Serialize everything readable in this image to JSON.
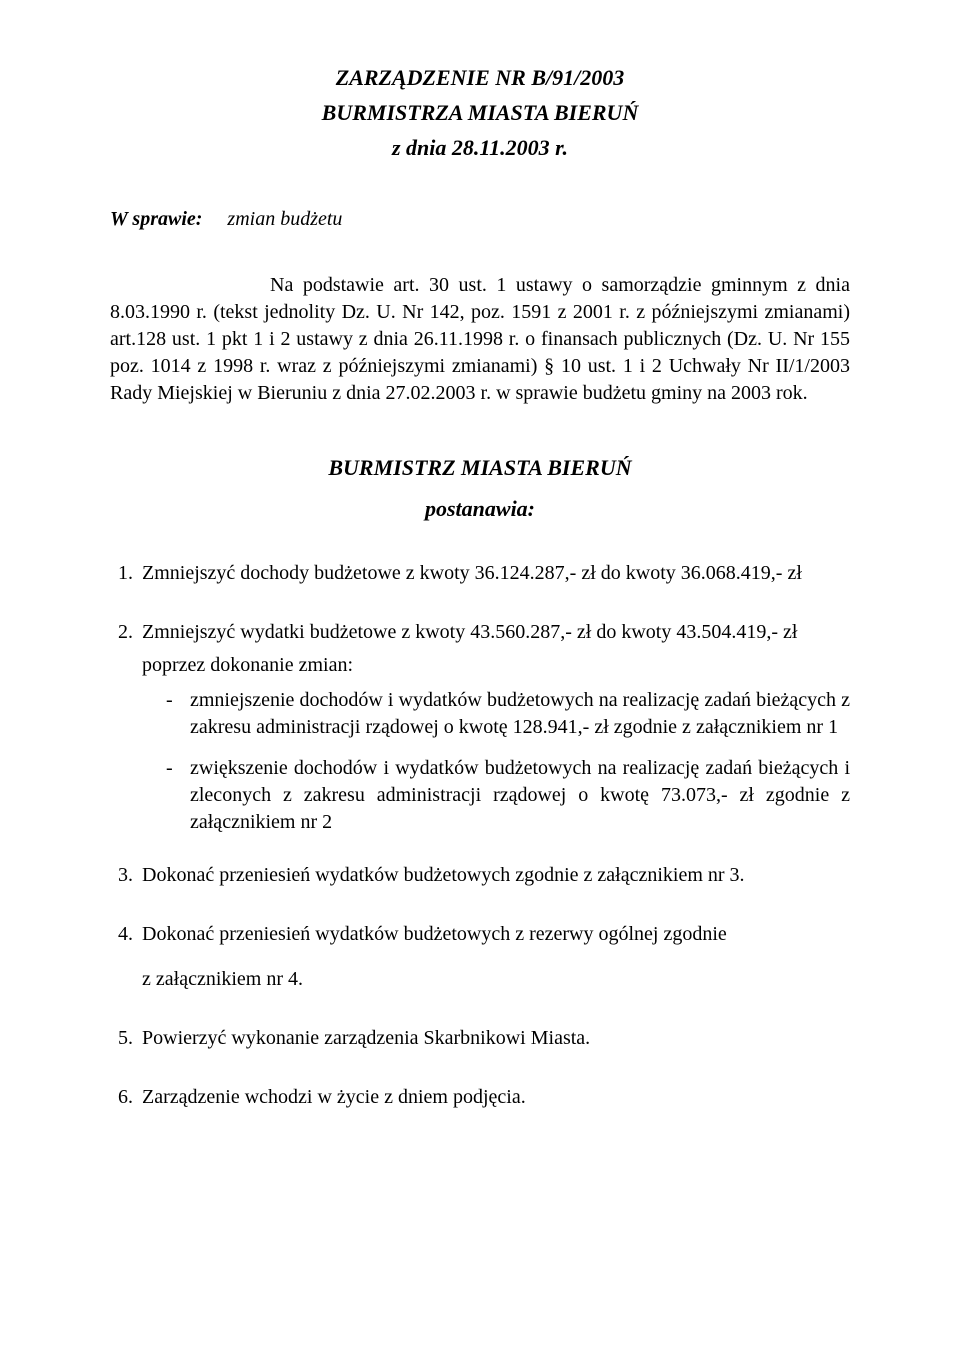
{
  "title": {
    "line1": "ZARZĄDZENIE NR B/91/2003",
    "line2": "BURMISTRZA  MIASTA  BIERUŃ",
    "line3": "z dnia 28.11.2003 r."
  },
  "subject": {
    "label": "W sprawie:",
    "text": "zmian budżetu"
  },
  "legal_basis": "Na podstawie art. 30 ust. 1 ustawy o samorządzie gminnym z dnia 8.03.1990 r. (tekst jednolity Dz. U. Nr 142, poz. 1591 z 2001 r. z późniejszymi zmianami) art.128 ust. 1 pkt 1 i 2 ustawy z dnia 26.11.1998 r. o finansach publicznych (Dz. U. Nr 155 poz. 1014 z 1998 r. wraz z późniejszymi zmianami) § 10 ust. 1 i 2 Uchwały Nr II/1/2003 Rady Miejskiej w Bieruniu z dnia 27.02.2003 r. w sprawie budżetu gminy na 2003 rok.",
  "decrees_header": {
    "line1": "BURMISTRZ  MIASTA  BIERUŃ",
    "line2": "postanawia:"
  },
  "items": {
    "i1": "Zmniejszyć dochody budżetowe z kwoty 36.124.287,- zł  do kwoty 36.068.419,- zł",
    "i2": "Zmniejszyć wydatki budżetowe z kwoty  43.560.287,- zł  do kwoty 43.504.419,- zł",
    "i2_intro": "poprzez dokonanie zmian:",
    "i2_sub1": "zmniejszenie dochodów i wydatków budżetowych na realizację zadań bieżących z zakresu administracji rządowej o kwotę 128.941,- zł zgodnie z załącznikiem nr 1",
    "i2_sub2": "zwiększenie dochodów i wydatków budżetowych na realizację zadań bieżących i zleconych z zakresu administracji rządowej o kwotę 73.073,- zł zgodnie z załącznikiem nr 2",
    "i3": "Dokonać przeniesień wydatków budżetowych zgodnie z załącznikiem nr 3.",
    "i4_a": "Dokonać przeniesień wydatków budżetowych z rezerwy ogólnej zgodnie",
    "i4_b": "z załącznikiem nr 4.",
    "i5": "Powierzyć wykonanie zarządzenia Skarbnikowi Miasta.",
    "i6": "Zarządzenie wchodzi w życie z dniem podjęcia."
  }
}
